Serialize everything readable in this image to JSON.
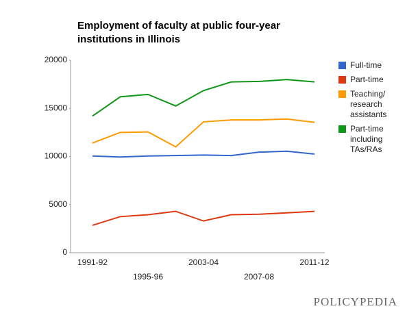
{
  "chart_data": {
    "type": "line",
    "title": "Employment of faculty at public four-year institutions in Illinois",
    "categories": [
      "1991-92",
      null,
      "1995-96",
      null,
      "2003-04",
      null,
      "2007-08",
      null,
      "2011-12"
    ],
    "series": [
      {
        "name": "Full-time",
        "color": "#3366cc",
        "values": [
          10050,
          9950,
          10050,
          10100,
          10150,
          10100,
          10450,
          10550,
          10250
        ]
      },
      {
        "name": "Part-time",
        "color": "#dc3912",
        "values": [
          2850,
          3750,
          3950,
          4300,
          3300,
          3950,
          4000,
          4150,
          4300
        ]
      },
      {
        "name": "Teaching/ research assistants",
        "color": "#ff9900",
        "values": [
          11400,
          12500,
          12550,
          11000,
          13600,
          13800,
          13800,
          13900,
          13550
        ]
      },
      {
        "name": "Part-time including TAs/RAs",
        "color": "#109618",
        "values": [
          14200,
          16200,
          16450,
          15250,
          16850,
          17750,
          17800,
          18000,
          17750
        ]
      }
    ],
    "ylim": [
      0,
      20000
    ],
    "yticks": [
      0,
      5000,
      10000,
      15000,
      20000
    ],
    "grid": false,
    "legend": "right"
  },
  "logo": "POLICYPEDIA"
}
